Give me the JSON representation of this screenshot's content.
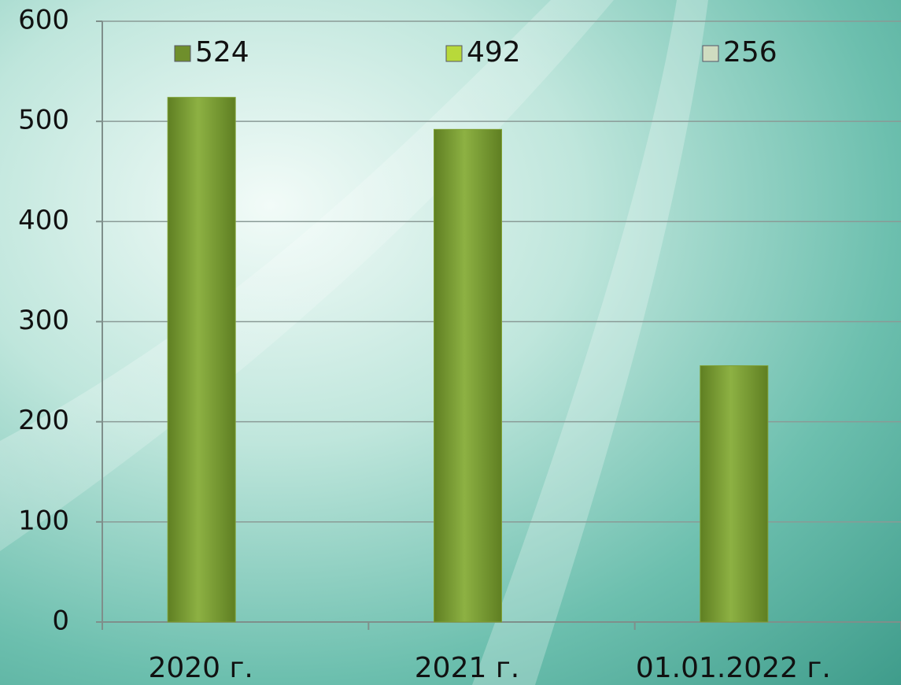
{
  "chart_data": {
    "type": "bar",
    "categories": [
      "2020 г.",
      "2021 г.",
      "01.01.2022 г."
    ],
    "series": [
      {
        "name": "524",
        "color": "#6f8f2c",
        "values": [
          524,
          null,
          null
        ]
      },
      {
        "name": "492",
        "color": "#b8d93a",
        "values": [
          null,
          492,
          null
        ]
      },
      {
        "name": "256",
        "color": "#cfdcc0",
        "values": [
          null,
          null,
          256
        ]
      }
    ],
    "bar_color": "#7ea034",
    "ylim": [
      0,
      600
    ],
    "yticks": [
      0,
      100,
      200,
      300,
      400,
      500,
      600
    ],
    "grid": true,
    "legend": "top"
  }
}
